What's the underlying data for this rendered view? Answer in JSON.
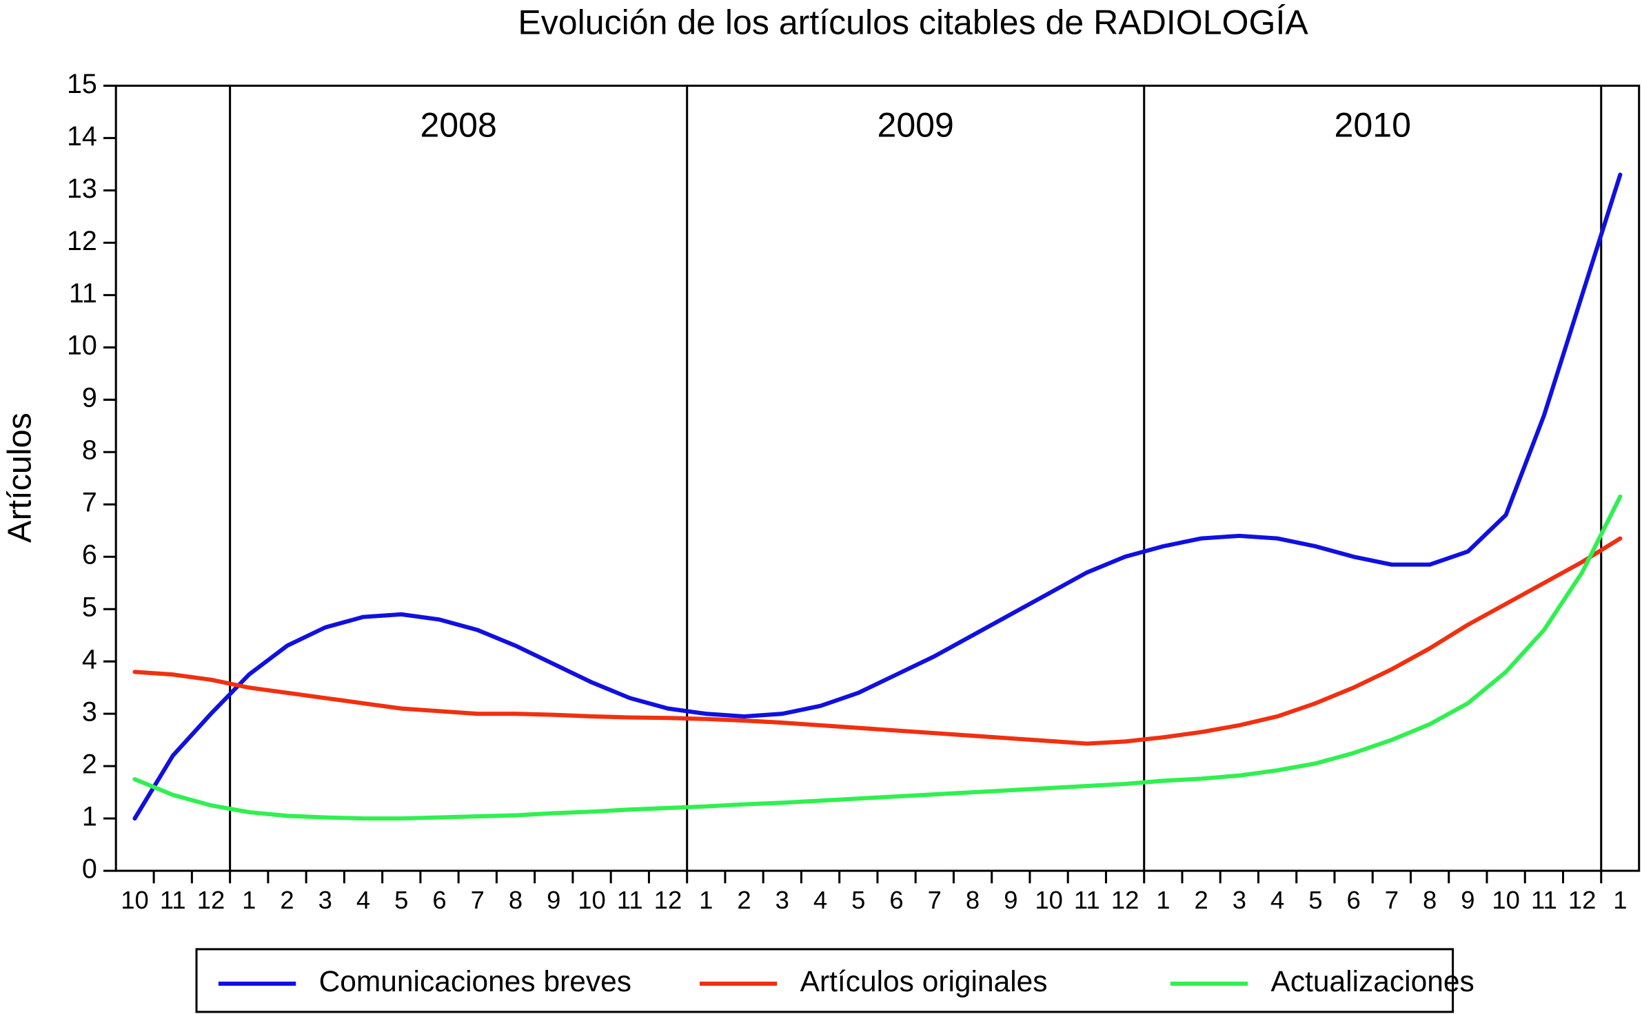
{
  "chart_data": {
    "type": "line",
    "title": "Evolución de los artículos citables de RADIOLOGÍA",
    "ylabel": "Artículos",
    "categories": [
      "10",
      "11",
      "12",
      "1",
      "2",
      "3",
      "4",
      "5",
      "6",
      "7",
      "8",
      "9",
      "10",
      "11",
      "12",
      "1",
      "2",
      "3",
      "4",
      "5",
      "6",
      "7",
      "8",
      "9",
      "10",
      "11",
      "12",
      "1",
      "2",
      "3",
      "4",
      "5",
      "6",
      "7",
      "8",
      "9",
      "10",
      "11",
      "12",
      "1"
    ],
    "years": [
      "2008",
      "2009",
      "2010"
    ],
    "series": [
      {
        "name": "Comunicaciones breves",
        "color": "#1010e0",
        "values": [
          1.0,
          2.2,
          3.0,
          3.75,
          4.3,
          4.65,
          4.85,
          4.9,
          4.8,
          4.6,
          4.3,
          3.95,
          3.6,
          3.3,
          3.1,
          3.0,
          2.95,
          3.0,
          3.15,
          3.4,
          3.75,
          4.1,
          4.5,
          4.9,
          5.3,
          5.7,
          6.0,
          6.2,
          6.35,
          6.4,
          6.35,
          6.2,
          6.0,
          5.85,
          5.85,
          6.1,
          6.8,
          8.7,
          11.0,
          13.3
        ]
      },
      {
        "name": "Artículos originales",
        "color": "#f03010",
        "values": [
          3.8,
          3.75,
          3.65,
          3.5,
          3.4,
          3.3,
          3.2,
          3.1,
          3.05,
          3.0,
          3.0,
          2.98,
          2.95,
          2.93,
          2.92,
          2.9,
          2.87,
          2.83,
          2.78,
          2.73,
          2.68,
          2.63,
          2.58,
          2.53,
          2.48,
          2.43,
          2.47,
          2.55,
          2.65,
          2.78,
          2.95,
          3.2,
          3.5,
          3.85,
          4.25,
          4.7,
          5.1,
          5.5,
          5.9,
          6.35
        ]
      },
      {
        "name": "Actualizaciones",
        "color": "#30f050",
        "values": [
          1.75,
          1.45,
          1.25,
          1.12,
          1.05,
          1.02,
          1.0,
          1.0,
          1.02,
          1.04,
          1.06,
          1.1,
          1.13,
          1.17,
          1.2,
          1.23,
          1.27,
          1.3,
          1.34,
          1.38,
          1.42,
          1.46,
          1.5,
          1.54,
          1.58,
          1.62,
          1.66,
          1.72,
          1.76,
          1.82,
          1.92,
          2.05,
          2.25,
          2.5,
          2.8,
          3.2,
          3.8,
          4.6,
          5.7,
          7.15
        ]
      }
    ],
    "ylim": [
      0,
      15
    ],
    "yticks": [
      0,
      1,
      2,
      3,
      4,
      5,
      6,
      7,
      8,
      9,
      10,
      11,
      12,
      13,
      14,
      15
    ],
    "legend": "bottom"
  }
}
